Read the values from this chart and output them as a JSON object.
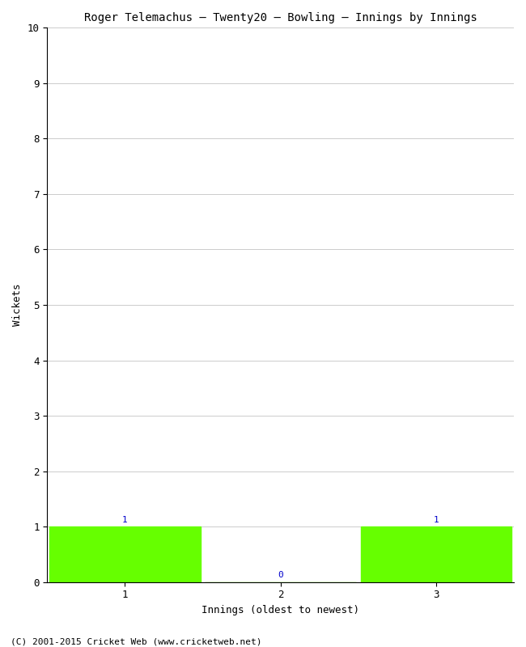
{
  "title": "Roger Telemachus – Twenty20 – Bowling – Innings by Innings",
  "xlabel": "Innings (oldest to newest)",
  "ylabel": "Wickets",
  "categories": [
    "1",
    "2",
    "3"
  ],
  "values": [
    1,
    0,
    1
  ],
  "bar_color": "#66ff00",
  "bar_edge_color": "#66ff00",
  "ylim": [
    0,
    10
  ],
  "yticks": [
    0,
    1,
    2,
    3,
    4,
    5,
    6,
    7,
    8,
    9,
    10
  ],
  "label_color": "#0000cc",
  "footnote": "(C) 2001-2015 Cricket Web (www.cricketweb.net)",
  "background_color": "#ffffff",
  "grid_color": "#cccccc",
  "title_fontsize": 10,
  "axis_fontsize": 9,
  "tick_fontsize": 9,
  "label_fontsize": 8,
  "footnote_fontsize": 8,
  "bar_width": 0.97
}
